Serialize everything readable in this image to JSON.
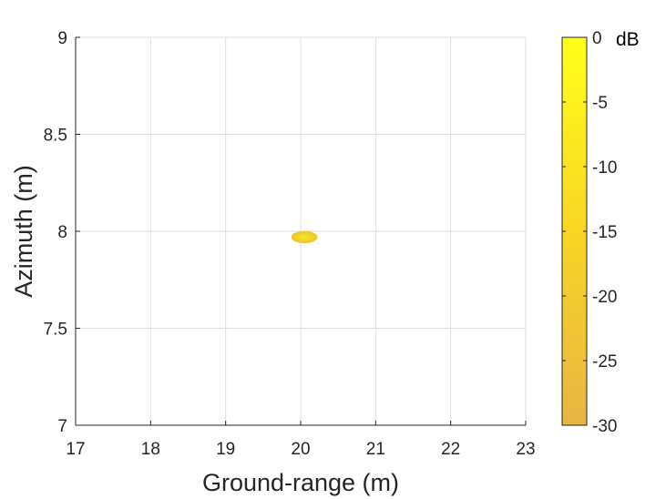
{
  "chart_data": {
    "type": "heatmap",
    "title": "",
    "xlabel": "Ground-range (m)",
    "ylabel": "Azimuth (m)",
    "xlim": [
      17,
      23
    ],
    "ylim": [
      7,
      9
    ],
    "xticks": [
      "17",
      "18",
      "19",
      "20",
      "21",
      "22",
      "23"
    ],
    "yticks": [
      "7",
      "7.5",
      "8",
      "8.5",
      "9"
    ],
    "grid": true,
    "colorbar": {
      "unit": "dB",
      "range": [
        -30,
        0
      ],
      "ticks": [
        "0",
        "-5",
        "-10",
        "-15",
        "-20",
        "-25",
        "-30"
      ],
      "color_low": "#e7b544",
      "color_high": "#ffff1a"
    },
    "blobs": [
      {
        "x_center": 20.05,
        "y_center": 7.97,
        "x_half_width": 0.17,
        "y_half_width": 0.03,
        "peak_db": -12
      }
    ]
  }
}
